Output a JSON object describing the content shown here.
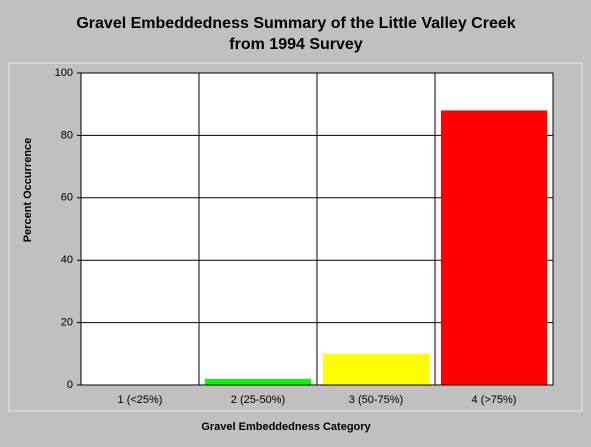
{
  "chart_data": {
    "type": "bar",
    "title": [
      "Gravel Embeddedness Summary of the Little Valley Creek",
      "from 1994 Survey"
    ],
    "x_label": "Gravel Embeddedness Category",
    "y_label": "Percent Occurrence",
    "categories": [
      "1 (<25%)",
      "2 (25-50%)",
      "3 (50-75%)",
      "4 (>75%)"
    ],
    "values": [
      0,
      2,
      10,
      88
    ],
    "colors": [
      "#0000ff",
      "#00ff00",
      "#ffff00",
      "#ff0000"
    ],
    "ylim": [
      0,
      100
    ],
    "yticks": [
      0,
      20,
      40,
      60,
      80,
      100
    ],
    "grid": true
  }
}
